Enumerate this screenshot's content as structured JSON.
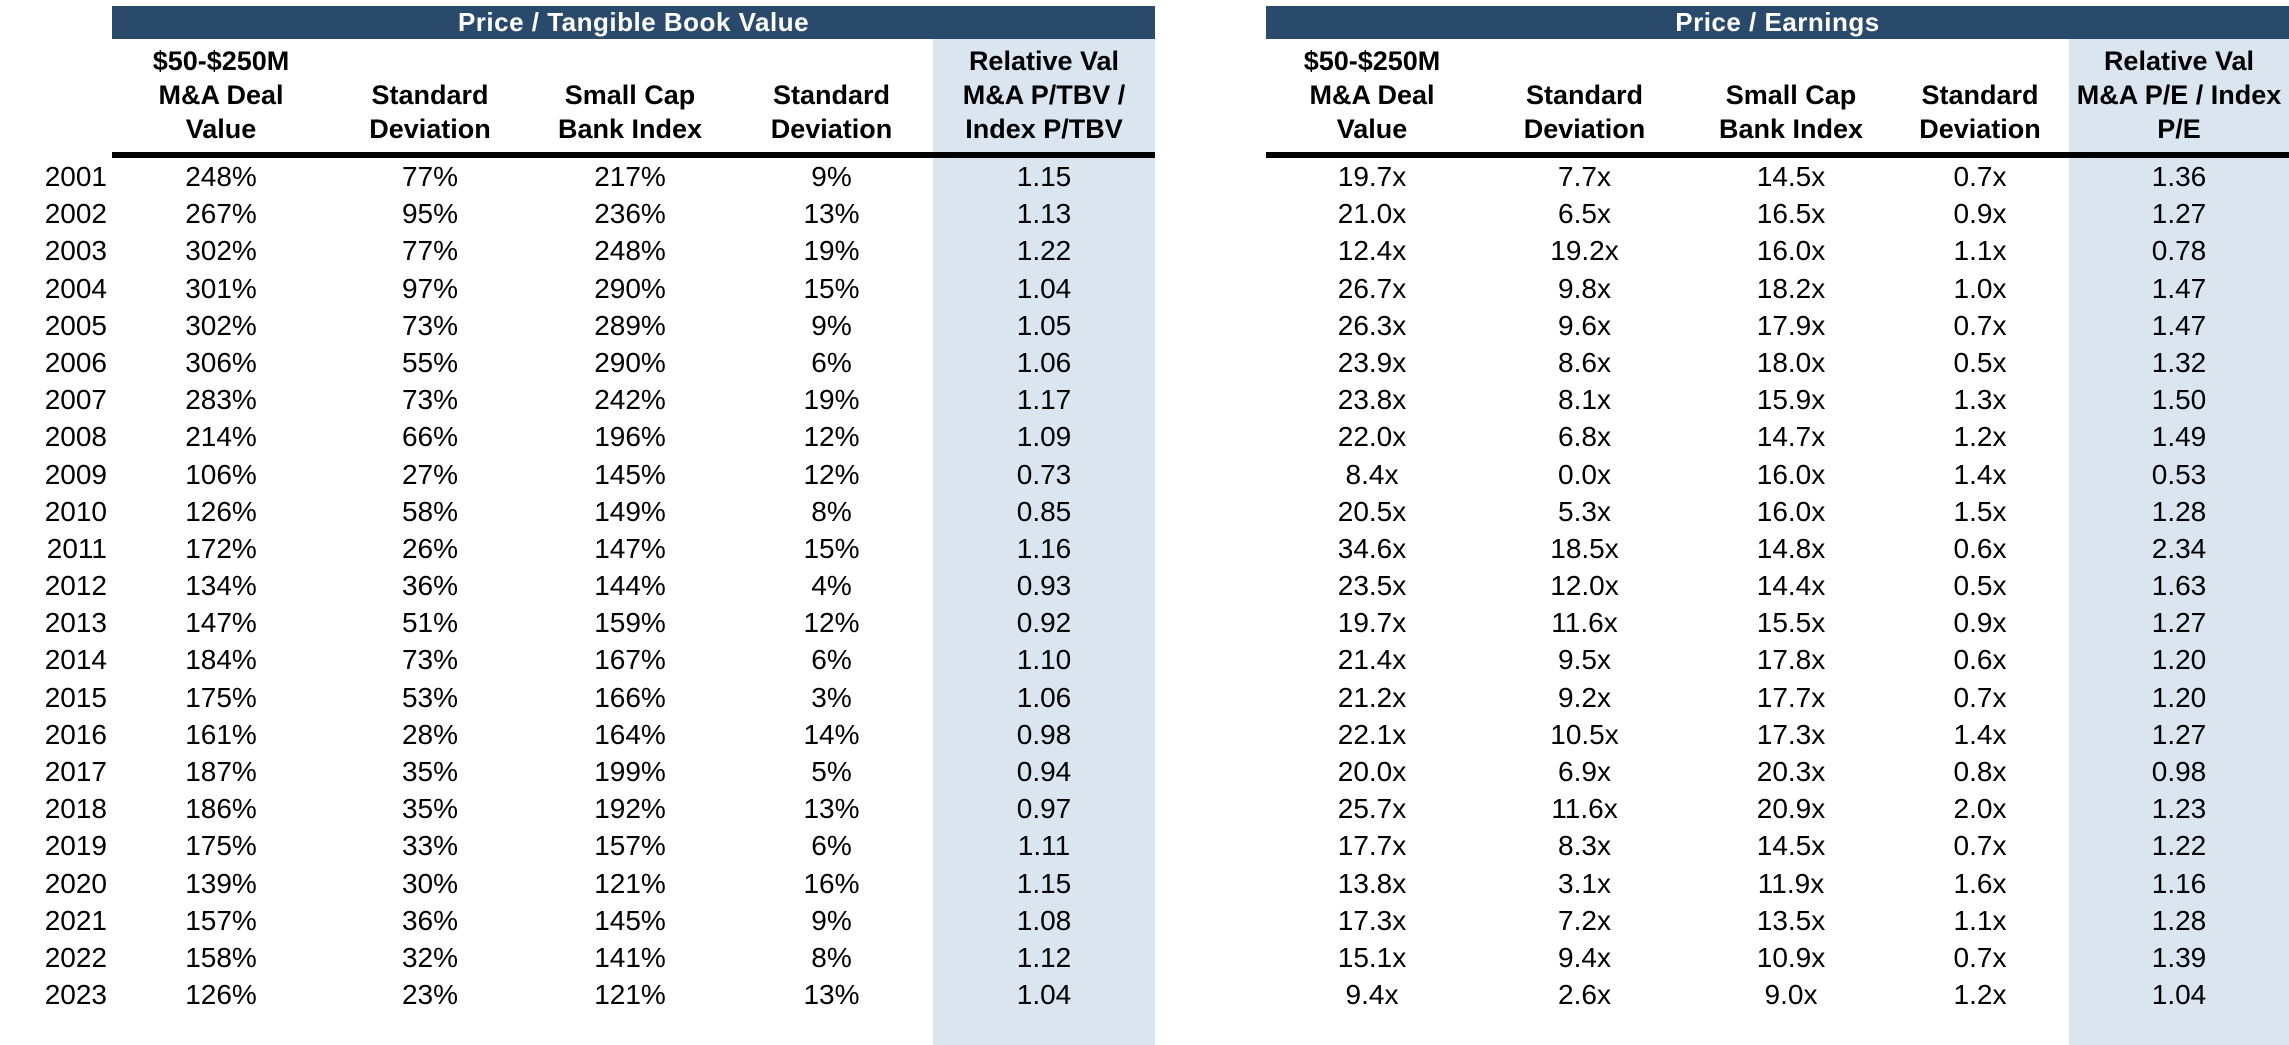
{
  "colors": {
    "title_bar_bg": "#2A4A6B",
    "title_text": "#FFFFFF",
    "highlight_bg": "#DBE5F0",
    "rule": "#000000",
    "text": "#000000"
  },
  "years": [
    "2001",
    "2002",
    "2003",
    "2004",
    "2005",
    "2006",
    "2007",
    "2008",
    "2009",
    "2010",
    "2011",
    "2012",
    "2013",
    "2014",
    "2015",
    "2016",
    "2017",
    "2018",
    "2019",
    "2020",
    "2021",
    "2022",
    "2023"
  ],
  "tables": [
    {
      "title": "Price / Tangible Book Value",
      "columns": [
        {
          "lines": [
            "$50-$250M",
            "M&A Deal",
            "Value"
          ],
          "highlighted": false
        },
        {
          "lines": [
            "Standard",
            "Deviation"
          ],
          "highlighted": false
        },
        {
          "lines": [
            "Small Cap",
            "Bank Index"
          ],
          "highlighted": false
        },
        {
          "lines": [
            "Standard",
            "Deviation"
          ],
          "highlighted": false
        },
        {
          "lines": [
            "Relative Val",
            "M&A P/TBV /",
            "Index P/TBV"
          ],
          "highlighted": true
        }
      ],
      "rows": [
        [
          "248%",
          "77%",
          "217%",
          "9%",
          "1.15"
        ],
        [
          "267%",
          "95%",
          "236%",
          "13%",
          "1.13"
        ],
        [
          "302%",
          "77%",
          "248%",
          "19%",
          "1.22"
        ],
        [
          "301%",
          "97%",
          "290%",
          "15%",
          "1.04"
        ],
        [
          "302%",
          "73%",
          "289%",
          "9%",
          "1.05"
        ],
        [
          "306%",
          "55%",
          "290%",
          "6%",
          "1.06"
        ],
        [
          "283%",
          "73%",
          "242%",
          "19%",
          "1.17"
        ],
        [
          "214%",
          "66%",
          "196%",
          "12%",
          "1.09"
        ],
        [
          "106%",
          "27%",
          "145%",
          "12%",
          "0.73"
        ],
        [
          "126%",
          "58%",
          "149%",
          "8%",
          "0.85"
        ],
        [
          "172%",
          "26%",
          "147%",
          "15%",
          "1.16"
        ],
        [
          "134%",
          "36%",
          "144%",
          "4%",
          "0.93"
        ],
        [
          "147%",
          "51%",
          "159%",
          "12%",
          "0.92"
        ],
        [
          "184%",
          "73%",
          "167%",
          "6%",
          "1.10"
        ],
        [
          "175%",
          "53%",
          "166%",
          "3%",
          "1.06"
        ],
        [
          "161%",
          "28%",
          "164%",
          "14%",
          "0.98"
        ],
        [
          "187%",
          "35%",
          "199%",
          "5%",
          "0.94"
        ],
        [
          "186%",
          "35%",
          "192%",
          "13%",
          "0.97"
        ],
        [
          "175%",
          "33%",
          "157%",
          "6%",
          "1.11"
        ],
        [
          "139%",
          "30%",
          "121%",
          "16%",
          "1.15"
        ],
        [
          "157%",
          "36%",
          "145%",
          "9%",
          "1.08"
        ],
        [
          "158%",
          "32%",
          "141%",
          "8%",
          "1.12"
        ],
        [
          "126%",
          "23%",
          "121%",
          "13%",
          "1.04"
        ]
      ]
    },
    {
      "title": "Price / Earnings",
      "columns": [
        {
          "lines": [
            "$50-$250M",
            "M&A Deal",
            "Value"
          ],
          "highlighted": false
        },
        {
          "lines": [
            "Standard",
            "Deviation"
          ],
          "highlighted": false
        },
        {
          "lines": [
            "Small Cap",
            "Bank Index"
          ],
          "highlighted": false
        },
        {
          "lines": [
            "Standard",
            "Deviation"
          ],
          "highlighted": false
        },
        {
          "lines": [
            "Relative Val",
            "M&A P/E / Index",
            "P/E"
          ],
          "highlighted": true
        }
      ],
      "rows": [
        [
          "19.7x",
          "7.7x",
          "14.5x",
          "0.7x",
          "1.36"
        ],
        [
          "21.0x",
          "6.5x",
          "16.5x",
          "0.9x",
          "1.27"
        ],
        [
          "12.4x",
          "19.2x",
          "16.0x",
          "1.1x",
          "0.78"
        ],
        [
          "26.7x",
          "9.8x",
          "18.2x",
          "1.0x",
          "1.47"
        ],
        [
          "26.3x",
          "9.6x",
          "17.9x",
          "0.7x",
          "1.47"
        ],
        [
          "23.9x",
          "8.6x",
          "18.0x",
          "0.5x",
          "1.32"
        ],
        [
          "23.8x",
          "8.1x",
          "15.9x",
          "1.3x",
          "1.50"
        ],
        [
          "22.0x",
          "6.8x",
          "14.7x",
          "1.2x",
          "1.49"
        ],
        [
          "8.4x",
          "0.0x",
          "16.0x",
          "1.4x",
          "0.53"
        ],
        [
          "20.5x",
          "5.3x",
          "16.0x",
          "1.5x",
          "1.28"
        ],
        [
          "34.6x",
          "18.5x",
          "14.8x",
          "0.6x",
          "2.34"
        ],
        [
          "23.5x",
          "12.0x",
          "14.4x",
          "0.5x",
          "1.63"
        ],
        [
          "19.7x",
          "11.6x",
          "15.5x",
          "0.9x",
          "1.27"
        ],
        [
          "21.4x",
          "9.5x",
          "17.8x",
          "0.6x",
          "1.20"
        ],
        [
          "21.2x",
          "9.2x",
          "17.7x",
          "0.7x",
          "1.20"
        ],
        [
          "22.1x",
          "10.5x",
          "17.3x",
          "1.4x",
          "1.27"
        ],
        [
          "20.0x",
          "6.9x",
          "20.3x",
          "0.8x",
          "0.98"
        ],
        [
          "25.7x",
          "11.6x",
          "20.9x",
          "2.0x",
          "1.23"
        ],
        [
          "17.7x",
          "8.3x",
          "14.5x",
          "0.7x",
          "1.22"
        ],
        [
          "13.8x",
          "3.1x",
          "11.9x",
          "1.6x",
          "1.16"
        ],
        [
          "17.3x",
          "7.2x",
          "13.5x",
          "1.1x",
          "1.28"
        ],
        [
          "15.1x",
          "9.4x",
          "10.9x",
          "0.7x",
          "1.39"
        ],
        [
          "9.4x",
          "2.6x",
          "9.0x",
          "1.2x",
          "1.04"
        ]
      ]
    }
  ]
}
